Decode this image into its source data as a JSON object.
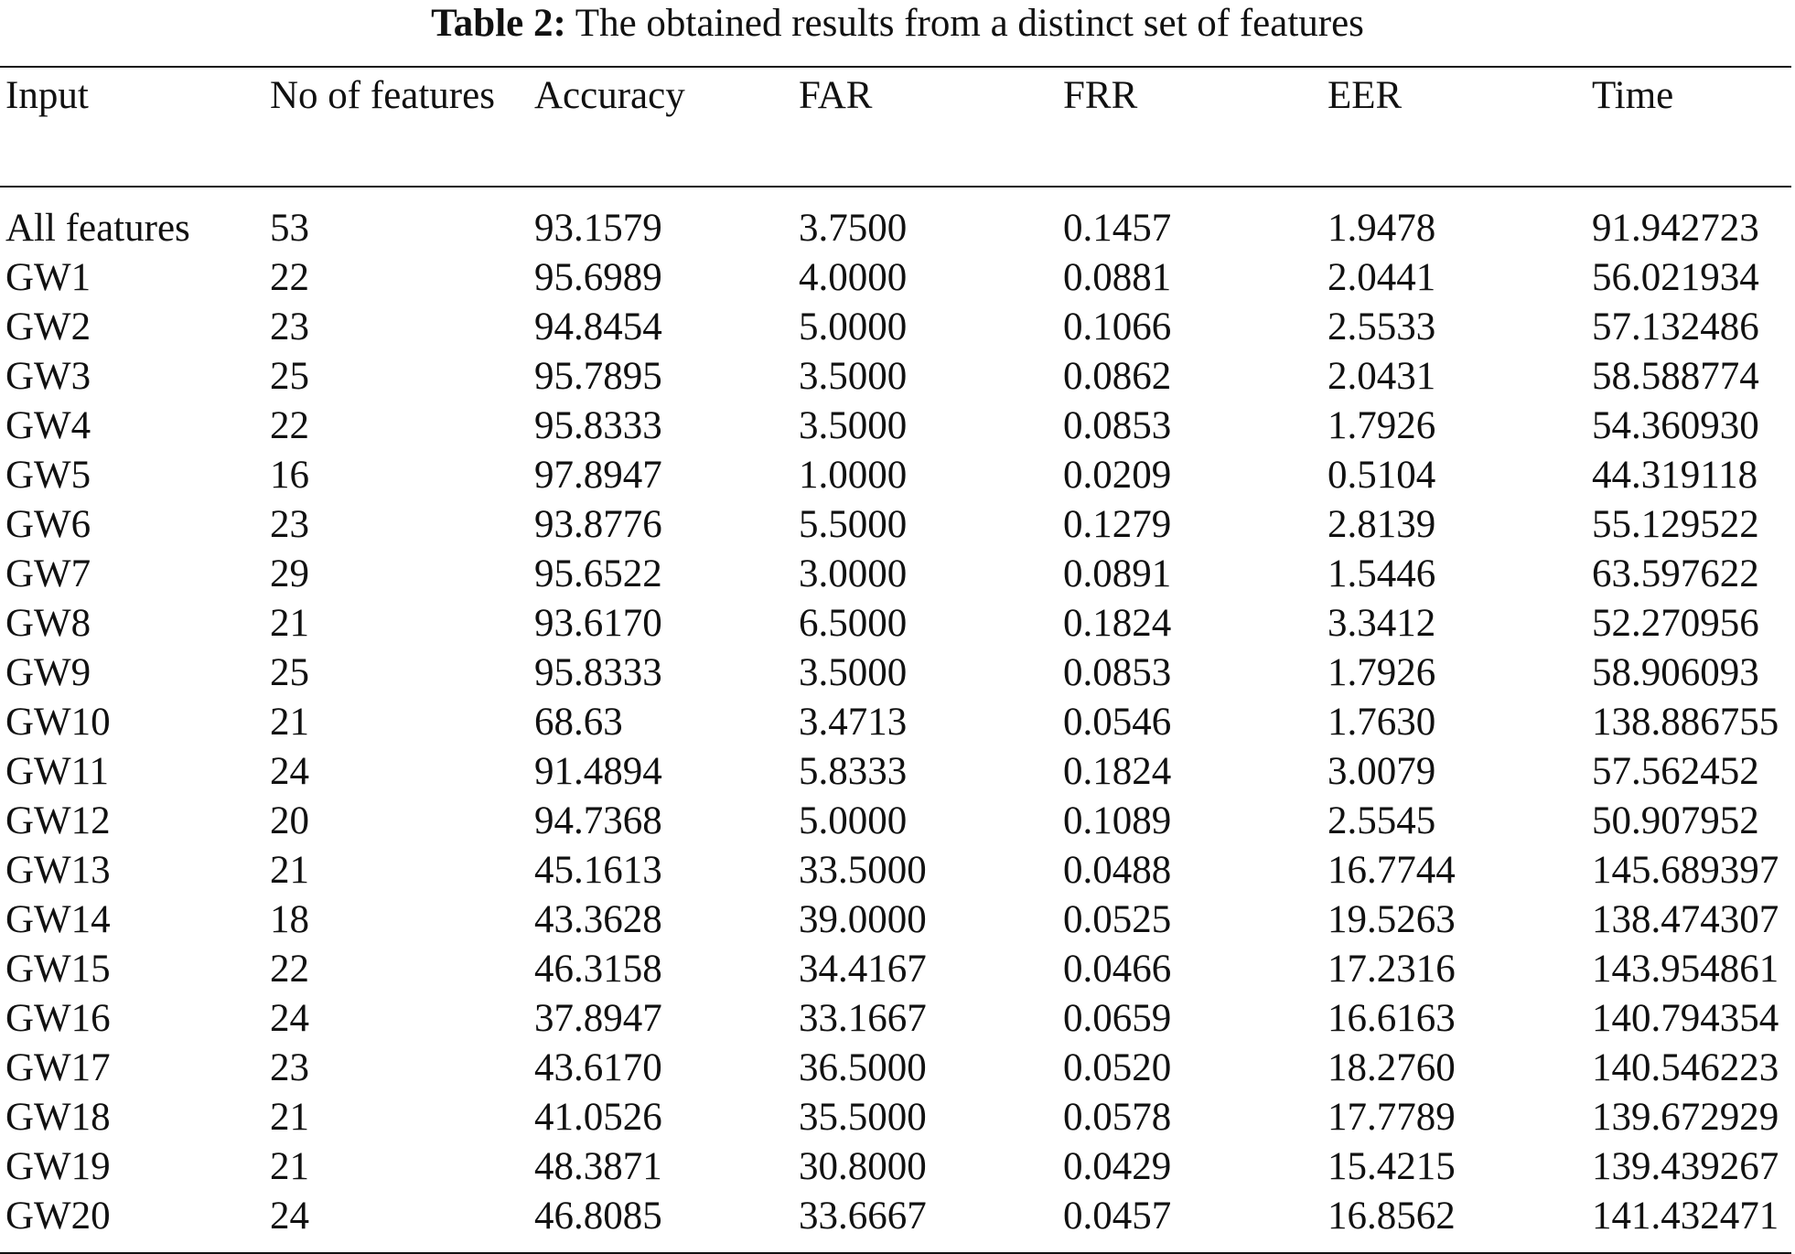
{
  "caption": {
    "label": "Table 2:",
    "text": "The obtained results from a distinct set of features"
  },
  "table": {
    "headers": [
      "Input",
      "No of features",
      "Accuracy",
      "FAR",
      "FRR",
      "EER",
      "Time"
    ],
    "rows": [
      [
        "All features",
        "53",
        "93.1579",
        "3.7500",
        "0.1457",
        "1.9478",
        "91.942723"
      ],
      [
        "GW1",
        "22",
        "95.6989",
        "4.0000",
        "0.0881",
        "2.0441",
        "56.021934"
      ],
      [
        "GW2",
        "23",
        "94.8454",
        "5.0000",
        "0.1066",
        "2.5533",
        "57.132486"
      ],
      [
        "GW3",
        "25",
        "95.7895",
        "3.5000",
        "0.0862",
        "2.0431",
        "58.588774"
      ],
      [
        "GW4",
        "22",
        "95.8333",
        "3.5000",
        "0.0853",
        "1.7926",
        "54.360930"
      ],
      [
        "GW5",
        "16",
        "97.8947",
        "1.0000",
        "0.0209",
        "0.5104",
        "44.319118"
      ],
      [
        "GW6",
        "23",
        "93.8776",
        "5.5000",
        "0.1279",
        "2.8139",
        "55.129522"
      ],
      [
        "GW7",
        "29",
        "95.6522",
        "3.0000",
        "0.0891",
        "1.5446",
        "63.597622"
      ],
      [
        "GW8",
        "21",
        "93.6170",
        "6.5000",
        "0.1824",
        "3.3412",
        "52.270956"
      ],
      [
        "GW9",
        "25",
        "95.8333",
        "3.5000",
        "0.0853",
        "1.7926",
        "58.906093"
      ],
      [
        "GW10",
        "21",
        "68.63",
        "3.4713",
        "0.0546",
        "1.7630",
        "138.886755"
      ],
      [
        "GW11",
        "24",
        "91.4894",
        "5.8333",
        "0.1824",
        "3.0079",
        "57.562452"
      ],
      [
        "GW12",
        "20",
        "94.7368",
        "5.0000",
        "0.1089",
        "2.5545",
        "50.907952"
      ],
      [
        "GW13",
        "21",
        "45.1613",
        "33.5000",
        "0.0488",
        "16.7744",
        "145.689397"
      ],
      [
        "GW14",
        "18",
        "43.3628",
        "39.0000",
        "0.0525",
        "19.5263",
        "138.474307"
      ],
      [
        "GW15",
        "22",
        "46.3158",
        "34.4167",
        "0.0466",
        "17.2316",
        "143.954861"
      ],
      [
        "GW16",
        "24",
        "37.8947",
        "33.1667",
        "0.0659",
        "16.6163",
        "140.794354"
      ],
      [
        "GW17",
        "23",
        "43.6170",
        "36.5000",
        "0.0520",
        "18.2760",
        "140.546223"
      ],
      [
        "GW18",
        "21",
        "41.0526",
        "35.5000",
        "0.0578",
        "17.7789",
        "139.672929"
      ],
      [
        "GW19",
        "21",
        "48.3871",
        "30.8000",
        "0.0429",
        "15.4215",
        "139.439267"
      ],
      [
        "GW20",
        "24",
        "46.8085",
        "33.6667",
        "0.0457",
        "16.8562",
        "141.432471"
      ]
    ]
  }
}
